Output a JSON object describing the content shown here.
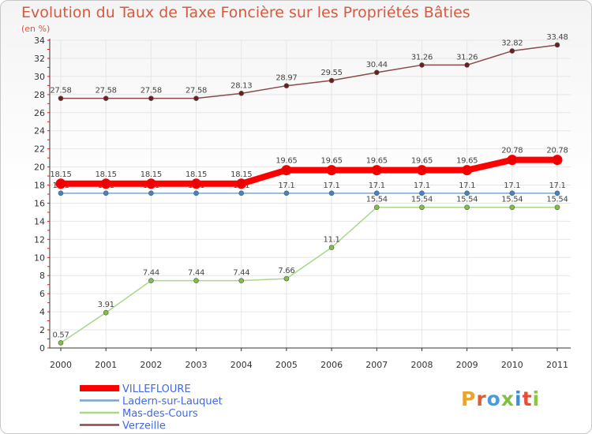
{
  "title": "Evolution du Taux de Taxe Foncière sur les Propriétés Bâties",
  "subtitle": "(en %)",
  "logo": {
    "text": "Proxiti",
    "letter_colors": [
      "#e8a531",
      "#e25c2d",
      "#4a9bd8",
      "#7fc142",
      "#3f8fd2",
      "#e94b35",
      "#8cc63f"
    ]
  },
  "chart_data": {
    "type": "line",
    "title": "Evolution du Taux de Taxe Foncière sur les Propriétés Bâties",
    "ylabel": "(en %)",
    "xlabel": "",
    "ylim": [
      0,
      34
    ],
    "yticks": [
      0,
      2,
      4,
      6,
      8,
      10,
      12,
      14,
      16,
      18,
      20,
      22,
      24,
      26,
      28,
      30,
      32,
      34
    ],
    "x": [
      "2000",
      "2001",
      "2002",
      "2003",
      "2004",
      "2005",
      "2006",
      "2007",
      "2008",
      "2009",
      "2010",
      "2011"
    ],
    "series": [
      {
        "name": "Verzeille",
        "color": "#8a4a4a",
        "dot": "#6b2020",
        "width": 1.5,
        "values": [
          27.58,
          27.58,
          27.58,
          27.58,
          28.13,
          28.97,
          29.55,
          30.44,
          31.26,
          31.26,
          32.82,
          33.48
        ],
        "labels": [
          "27.58",
          "27.58",
          "27.58",
          "27.58",
          "28.13",
          "28.97",
          "29.55",
          "30.44",
          "31.26",
          "31.26",
          "32.82",
          "33.48"
        ]
      },
      {
        "name": "Mas-des-Cours",
        "color": "#a8d88a",
        "dot": "#7fc142",
        "width": 1.5,
        "values": [
          0.57,
          3.91,
          7.44,
          7.44,
          7.44,
          7.66,
          11.1,
          15.54,
          15.54,
          15.54,
          15.54,
          15.54
        ],
        "labels": [
          "0.57",
          "3.91",
          "7.44",
          "7.44",
          "7.44",
          "7.66",
          "11.1",
          "15.54",
          "15.54",
          "15.54",
          "15.54",
          "15.54"
        ]
      },
      {
        "name": "Ladern-sur-Lauquet",
        "color": "#7aa6cc",
        "dot": "#3f86c6",
        "width": 1.5,
        "values": [
          17.1,
          17.1,
          17.1,
          17.1,
          17.1,
          17.1,
          17.1,
          17.1,
          17.1,
          17.1,
          17.1,
          17.1
        ],
        "labels": [
          "17.1",
          "17.1",
          "17.1",
          "17.1",
          "17.1",
          "17.1",
          "17.1",
          "17.1",
          "17.1",
          "17.1",
          "17.1",
          "17.1"
        ]
      },
      {
        "name": "VILLEFLOURE",
        "color": "#ff0000",
        "dot": "#ee0000",
        "width": 8,
        "values": [
          18.15,
          18.15,
          18.15,
          18.15,
          18.15,
          19.65,
          19.65,
          19.65,
          19.65,
          19.65,
          20.78,
          20.78
        ],
        "labels": [
          "18.15",
          "18.15",
          "18.15",
          "18.15",
          "18.15",
          "19.65",
          "19.65",
          "19.65",
          "19.65",
          "19.65",
          "20.78",
          "20.78"
        ]
      }
    ],
    "legend": [
      {
        "name": "VILLEFLOURE",
        "color": "#ff0000",
        "text_color": "#4169e1"
      },
      {
        "name": "Ladern-sur-Lauquet",
        "color": "#7aa6cc",
        "text_color": "#4169e1"
      },
      {
        "name": "Mas-des-Cours",
        "color": "#a8d88a",
        "text_color": "#4169e1"
      },
      {
        "name": "Verzeille",
        "color": "#8a4a4a",
        "text_color": "#4169e1"
      }
    ],
    "legend_position": "bottom-left"
  }
}
